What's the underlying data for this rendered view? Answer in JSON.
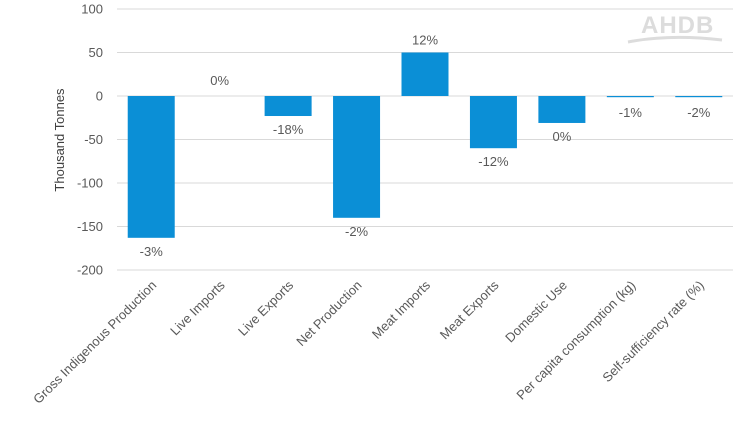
{
  "chart_data": {
    "type": "bar",
    "ylabel": "Thousand Tonnes",
    "ylim": [
      -200,
      100
    ],
    "yticks": [
      100,
      50,
      0,
      -50,
      -100,
      -150,
      -200
    ],
    "grid": true,
    "bar_color": "#0b8fd6",
    "categories": [
      "Gross Indigenous Production",
      "Live Imports",
      "Live Exports",
      "Net Production",
      "Meat Imports",
      "Meat Exports",
      "Domestic Use",
      "Per capita consumption (kg)",
      "Self-sufficiency rate (%)"
    ],
    "values": [
      -163,
      0,
      -23,
      -140,
      50,
      -60,
      -31,
      -1,
      -1
    ],
    "data_labels": [
      "-3%",
      "0%",
      "-18%",
      "-2%",
      "12%",
      "-12%",
      "0%",
      "-1%",
      "-2%"
    ]
  },
  "logo": {
    "text": "AHDB"
  }
}
